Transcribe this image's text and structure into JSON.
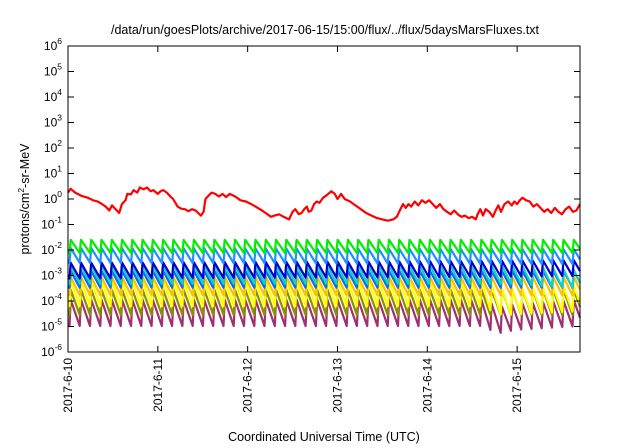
{
  "chart_data": {
    "type": "line",
    "title": "/data/run/goesPlots/archive/2017-06-15/15:00/flux/../flux/5daysMarsFluxes.txt",
    "xlabel": "Coordinated Universal Time (UTC)",
    "ylabel": "protons/cm2-sr-MeV",
    "ylabel_parts": {
      "base": "protons/cm",
      "sup": "2",
      "rest": "-sr-MeV"
    },
    "y_scale": "log",
    "ylim_exponents": [
      -6,
      6
    ],
    "y_tick_exponents": [
      -6,
      -5,
      -4,
      -3,
      -2,
      -1,
      0,
      1,
      2,
      3,
      4,
      5,
      6
    ],
    "y_tick_base": "10",
    "x_range_days": [
      0,
      5.7
    ],
    "x_ticks": [
      {
        "label": "2017-6-10",
        "day": 0
      },
      {
        "label": "2017-6-11",
        "day": 1
      },
      {
        "label": "2017-6-12",
        "day": 2
      },
      {
        "label": "2017-6-13",
        "day": 3
      },
      {
        "label": "2017-6-14",
        "day": 4
      },
      {
        "label": "2017-6-15",
        "day": 5
      }
    ],
    "grid": false,
    "series": [
      {
        "color": "#ff0000",
        "kind": "trace",
        "points": [
          [
            0.0,
            0.25
          ],
          [
            0.03,
            0.4
          ],
          [
            0.08,
            0.25
          ],
          [
            0.15,
            0.12
          ],
          [
            0.22,
            0.05
          ],
          [
            0.28,
            -0.05
          ],
          [
            0.33,
            -0.1
          ],
          [
            0.38,
            -0.2
          ],
          [
            0.42,
            -0.3
          ],
          [
            0.46,
            -0.45
          ],
          [
            0.49,
            -0.25
          ],
          [
            0.53,
            -0.4
          ],
          [
            0.57,
            -0.55
          ],
          [
            0.6,
            -0.2
          ],
          [
            0.64,
            -0.05
          ],
          [
            0.66,
            0.2
          ],
          [
            0.7,
            0.18
          ],
          [
            0.73,
            0.35
          ],
          [
            0.77,
            0.25
          ],
          [
            0.8,
            0.45
          ],
          [
            0.84,
            0.38
          ],
          [
            0.88,
            0.45
          ],
          [
            0.92,
            0.3
          ],
          [
            0.95,
            0.35
          ],
          [
            1.0,
            0.2
          ],
          [
            1.03,
            0.3
          ],
          [
            1.06,
            0.35
          ],
          [
            1.1,
            0.25
          ],
          [
            1.14,
            0.1
          ],
          [
            1.17,
            0.0
          ],
          [
            1.22,
            -0.3
          ],
          [
            1.26,
            -0.38
          ],
          [
            1.3,
            -0.4
          ],
          [
            1.34,
            -0.48
          ],
          [
            1.38,
            -0.4
          ],
          [
            1.42,
            -0.45
          ],
          [
            1.45,
            -0.55
          ],
          [
            1.48,
            -0.65
          ],
          [
            1.51,
            -0.5
          ],
          [
            1.53,
            0.0
          ],
          [
            1.57,
            0.15
          ],
          [
            1.6,
            0.25
          ],
          [
            1.64,
            0.2
          ],
          [
            1.68,
            0.1
          ],
          [
            1.72,
            0.2
          ],
          [
            1.76,
            0.08
          ],
          [
            1.8,
            0.2
          ],
          [
            1.86,
            0.1
          ],
          [
            1.92,
            -0.05
          ],
          [
            1.98,
            -0.1
          ],
          [
            2.04,
            -0.2
          ],
          [
            2.1,
            -0.32
          ],
          [
            2.16,
            -0.45
          ],
          [
            2.2,
            -0.55
          ],
          [
            2.26,
            -0.7
          ],
          [
            2.3,
            -0.65
          ],
          [
            2.35,
            -0.6
          ],
          [
            2.4,
            -0.7
          ],
          [
            2.46,
            -0.8
          ],
          [
            2.5,
            -0.5
          ],
          [
            2.53,
            -0.4
          ],
          [
            2.57,
            -0.6
          ],
          [
            2.6,
            -0.55
          ],
          [
            2.63,
            -0.4
          ],
          [
            2.66,
            -0.3
          ],
          [
            2.68,
            -0.5
          ],
          [
            2.71,
            -0.45
          ],
          [
            2.74,
            -0.2
          ],
          [
            2.77,
            -0.1
          ],
          [
            2.8,
            -0.15
          ],
          [
            2.84,
            0.05
          ],
          [
            2.88,
            0.15
          ],
          [
            2.93,
            0.3
          ],
          [
            2.97,
            0.2
          ],
          [
            3.0,
            0.0
          ],
          [
            3.04,
            0.2
          ],
          [
            3.08,
            0.0
          ],
          [
            3.14,
            -0.1
          ],
          [
            3.2,
            -0.25
          ],
          [
            3.26,
            -0.4
          ],
          [
            3.32,
            -0.55
          ],
          [
            3.38,
            -0.65
          ],
          [
            3.44,
            -0.75
          ],
          [
            3.5,
            -0.8
          ],
          [
            3.56,
            -0.85
          ],
          [
            3.62,
            -0.8
          ],
          [
            3.66,
            -0.7
          ],
          [
            3.7,
            -0.4
          ],
          [
            3.73,
            -0.2
          ],
          [
            3.76,
            -0.35
          ],
          [
            3.79,
            -0.2
          ],
          [
            3.82,
            -0.3
          ],
          [
            3.86,
            -0.1
          ],
          [
            3.9,
            -0.25
          ],
          [
            3.94,
            -0.05
          ],
          [
            3.98,
            -0.15
          ],
          [
            4.02,
            -0.05
          ],
          [
            4.06,
            -0.2
          ],
          [
            4.1,
            -0.35
          ],
          [
            4.14,
            -0.2
          ],
          [
            4.18,
            -0.4
          ],
          [
            4.22,
            -0.5
          ],
          [
            4.26,
            -0.6
          ],
          [
            4.3,
            -0.45
          ],
          [
            4.34,
            -0.6
          ],
          [
            4.38,
            -0.7
          ],
          [
            4.42,
            -0.65
          ],
          [
            4.46,
            -0.75
          ],
          [
            4.5,
            -0.7
          ],
          [
            4.54,
            -0.8
          ],
          [
            4.56,
            -0.6
          ],
          [
            4.59,
            -0.4
          ],
          [
            4.62,
            -0.65
          ],
          [
            4.65,
            -0.4
          ],
          [
            4.69,
            -0.5
          ],
          [
            4.73,
            -0.7
          ],
          [
            4.76,
            -0.45
          ],
          [
            4.79,
            -0.25
          ],
          [
            4.82,
            -0.5
          ],
          [
            4.86,
            -0.2
          ],
          [
            4.9,
            -0.1
          ],
          [
            4.94,
            -0.25
          ],
          [
            4.97,
            -0.1
          ],
          [
            5.0,
            -0.2
          ],
          [
            5.03,
            -0.05
          ],
          [
            5.06,
            0.05
          ],
          [
            5.1,
            -0.05
          ],
          [
            5.14,
            -0.1
          ],
          [
            5.18,
            -0.3
          ],
          [
            5.22,
            -0.2
          ],
          [
            5.26,
            -0.35
          ],
          [
            5.3,
            -0.5
          ],
          [
            5.34,
            -0.4
          ],
          [
            5.38,
            -0.55
          ],
          [
            5.42,
            -0.35
          ],
          [
            5.46,
            -0.5
          ],
          [
            5.5,
            -0.6
          ],
          [
            5.54,
            -0.4
          ],
          [
            5.58,
            -0.3
          ],
          [
            5.62,
            -0.5
          ],
          [
            5.66,
            -0.45
          ],
          [
            5.7,
            -0.2
          ]
        ]
      },
      {
        "color": "#00ee00",
        "kind": "sawtooth",
        "start_day": 0.03,
        "period_days": 0.1143,
        "high": -1.6,
        "low": -2.12,
        "drift": [
          [
            0,
            0.0
          ],
          [
            5.7,
            0.0
          ]
        ]
      },
      {
        "color": "#1e90ff",
        "kind": "sawtooth",
        "start_day": 0.03,
        "period_days": 0.1143,
        "high": -1.92,
        "low": -2.5,
        "drift": [
          [
            0,
            0.0
          ],
          [
            5.7,
            -0.05
          ]
        ]
      },
      {
        "color": "#0000cc",
        "kind": "sawtooth",
        "start_day": 0.03,
        "period_days": 0.1143,
        "high": -2.5,
        "low": -3.12,
        "drift": [
          [
            0,
            0.0
          ],
          [
            3.6,
            0.05
          ],
          [
            5.7,
            0.1
          ]
        ]
      },
      {
        "color": "#18d0c0",
        "kind": "sawtooth",
        "start_day": 0.03,
        "period_days": 0.1143,
        "high": -2.6,
        "low": -3.32,
        "drift": [
          [
            0,
            0.0
          ],
          [
            5.0,
            0.0
          ],
          [
            5.7,
            -0.2
          ]
        ]
      },
      {
        "color": "#0a6cf0",
        "kind": "sawtooth",
        "start_day": 0.03,
        "period_days": 0.1143,
        "high": -2.82,
        "low": -3.48,
        "drift": [
          [
            0,
            0.0
          ],
          [
            5.7,
            0.0
          ]
        ]
      },
      {
        "color": "#ffc000",
        "kind": "sawtooth",
        "start_day": 0.03,
        "period_days": 0.1143,
        "high": -3.05,
        "low": -3.78,
        "drift": [
          [
            0,
            0.0
          ],
          [
            5.7,
            0.0
          ]
        ]
      },
      {
        "color": "#ffff00",
        "kind": "sawtooth",
        "start_day": 0.03,
        "period_days": 0.1143,
        "high": -3.2,
        "low": -4.2,
        "drift": [
          [
            0,
            0.0
          ],
          [
            4.6,
            0.0
          ],
          [
            4.85,
            -0.35
          ],
          [
            5.7,
            -0.2
          ]
        ]
      },
      {
        "color": "#8b9000",
        "kind": "sawtooth",
        "start_day": 0.03,
        "period_days": 0.1143,
        "high": -3.55,
        "low": -4.55,
        "drift": [
          [
            0,
            0.0
          ],
          [
            5.7,
            0.0
          ]
        ]
      },
      {
        "color": "#a03070",
        "kind": "sawtooth",
        "start_day": 0.03,
        "period_days": 0.1143,
        "high": -3.95,
        "low": -4.98,
        "drift": [
          [
            0,
            0.0
          ],
          [
            4.65,
            0.0
          ],
          [
            4.78,
            -0.3
          ],
          [
            5.0,
            -0.15
          ],
          [
            5.7,
            0.0
          ]
        ]
      }
    ]
  }
}
